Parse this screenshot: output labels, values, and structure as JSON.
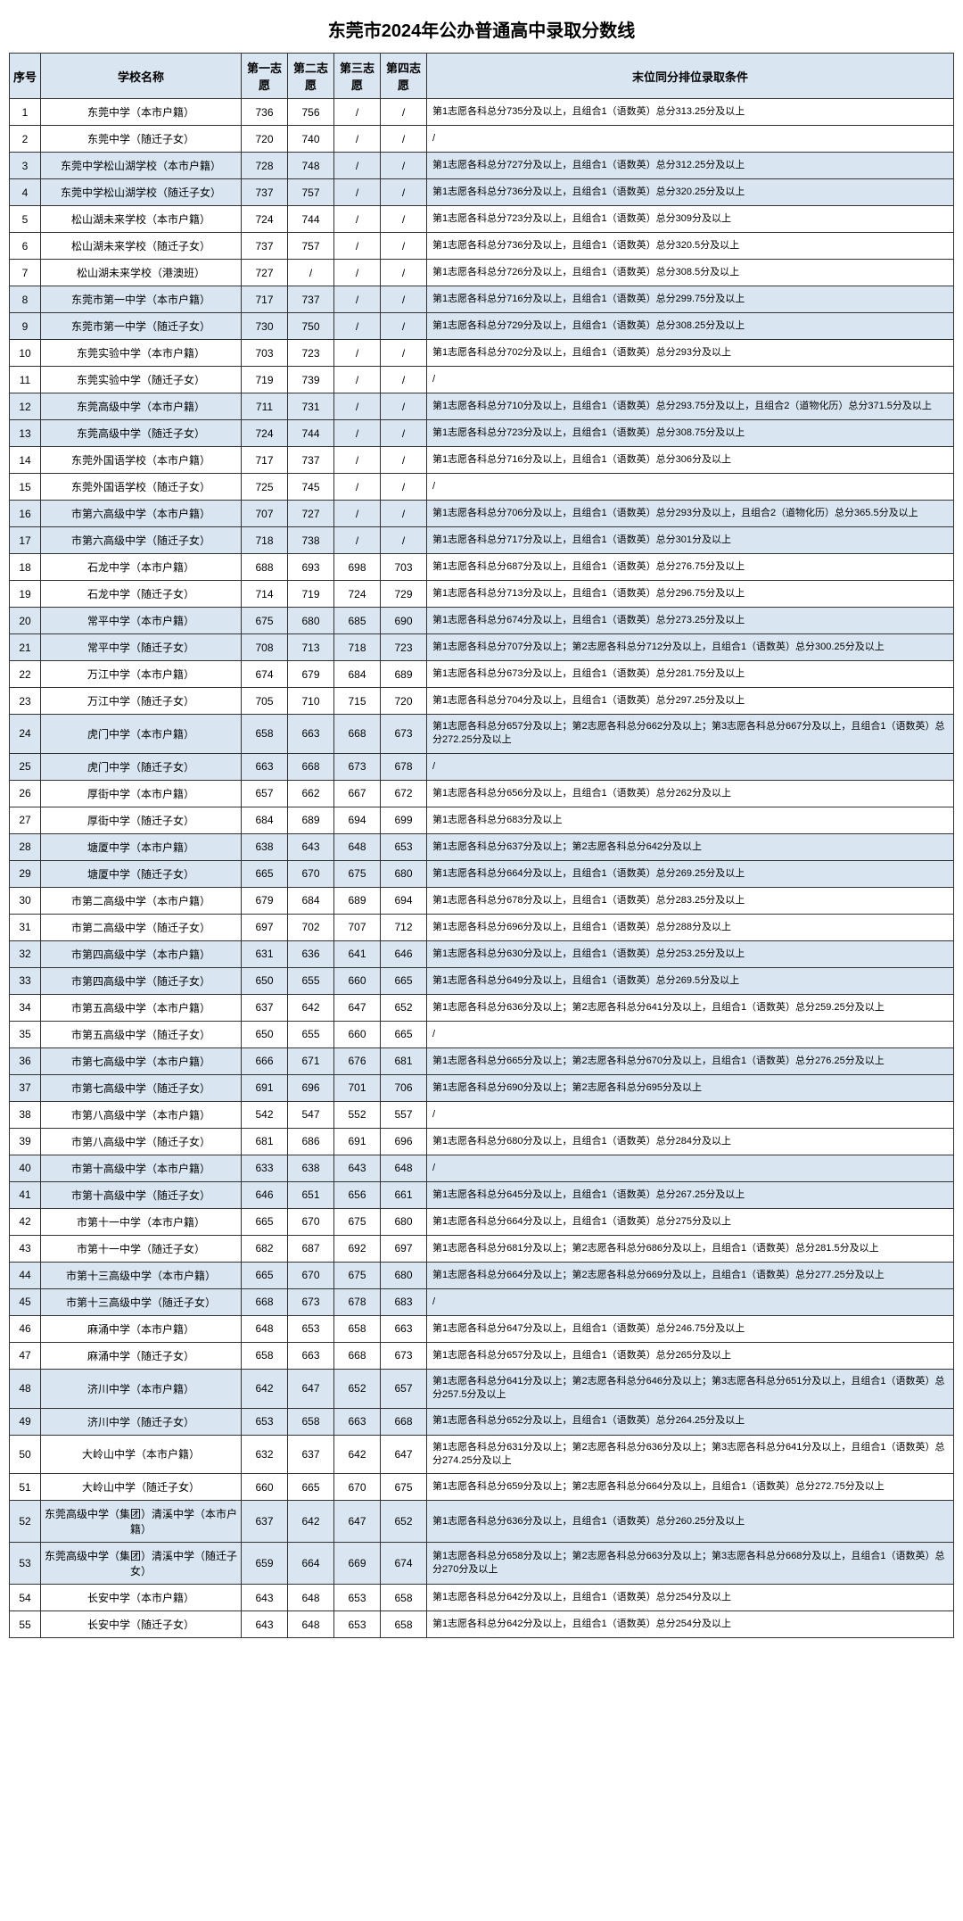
{
  "title": "东莞市2024年公办普通高中录取分数线",
  "headers": {
    "seq": "序号",
    "name": "学校名称",
    "c1": "第一志愿",
    "c2": "第二志愿",
    "c3": "第三志愿",
    "c4": "第四志愿",
    "cond": "末位同分排位录取条件"
  },
  "rows": [
    {
      "seq": "1",
      "name": "东莞中学（本市户籍）",
      "s1": "736",
      "s2": "756",
      "s3": "/",
      "s4": "/",
      "cond": "第1志愿各科总分735分及以上，且组合1（语数英）总分313.25分及以上",
      "hl": false
    },
    {
      "seq": "2",
      "name": "东莞中学（随迁子女）",
      "s1": "720",
      "s2": "740",
      "s3": "/",
      "s4": "/",
      "cond": "/",
      "hl": false
    },
    {
      "seq": "3",
      "name": "东莞中学松山湖学校（本市户籍）",
      "s1": "728",
      "s2": "748",
      "s3": "/",
      "s4": "/",
      "cond": "第1志愿各科总分727分及以上，且组合1（语数英）总分312.25分及以上",
      "hl": true
    },
    {
      "seq": "4",
      "name": "东莞中学松山湖学校（随迁子女）",
      "s1": "737",
      "s2": "757",
      "s3": "/",
      "s4": "/",
      "cond": "第1志愿各科总分736分及以上，且组合1（语数英）总分320.25分及以上",
      "hl": true
    },
    {
      "seq": "5",
      "name": "松山湖未来学校（本市户籍）",
      "s1": "724",
      "s2": "744",
      "s3": "/",
      "s4": "/",
      "cond": "第1志愿各科总分723分及以上，且组合1（语数英）总分309分及以上",
      "hl": false
    },
    {
      "seq": "6",
      "name": "松山湖未来学校（随迁子女）",
      "s1": "737",
      "s2": "757",
      "s3": "/",
      "s4": "/",
      "cond": "第1志愿各科总分736分及以上，且组合1（语数英）总分320.5分及以上",
      "hl": false
    },
    {
      "seq": "7",
      "name": "松山湖未来学校（港澳班）",
      "s1": "727",
      "s2": "/",
      "s3": "/",
      "s4": "/",
      "cond": "第1志愿各科总分726分及以上，且组合1（语数英）总分308.5分及以上",
      "hl": false
    },
    {
      "seq": "8",
      "name": "东莞市第一中学（本市户籍）",
      "s1": "717",
      "s2": "737",
      "s3": "/",
      "s4": "/",
      "cond": "第1志愿各科总分716分及以上，且组合1（语数英）总分299.75分及以上",
      "hl": true
    },
    {
      "seq": "9",
      "name": "东莞市第一中学（随迁子女）",
      "s1": "730",
      "s2": "750",
      "s3": "/",
      "s4": "/",
      "cond": "第1志愿各科总分729分及以上，且组合1（语数英）总分308.25分及以上",
      "hl": true
    },
    {
      "seq": "10",
      "name": "东莞实验中学（本市户籍）",
      "s1": "703",
      "s2": "723",
      "s3": "/",
      "s4": "/",
      "cond": "第1志愿各科总分702分及以上，且组合1（语数英）总分293分及以上",
      "hl": false
    },
    {
      "seq": "11",
      "name": "东莞实验中学（随迁子女）",
      "s1": "719",
      "s2": "739",
      "s3": "/",
      "s4": "/",
      "cond": "/",
      "hl": false
    },
    {
      "seq": "12",
      "name": "东莞高级中学（本市户籍）",
      "s1": "711",
      "s2": "731",
      "s3": "/",
      "s4": "/",
      "cond": "第1志愿各科总分710分及以上，且组合1（语数英）总分293.75分及以上，且组合2（道物化历）总分371.5分及以上",
      "hl": true
    },
    {
      "seq": "13",
      "name": "东莞高级中学（随迁子女）",
      "s1": "724",
      "s2": "744",
      "s3": "/",
      "s4": "/",
      "cond": "第1志愿各科总分723分及以上，且组合1（语数英）总分308.75分及以上",
      "hl": true
    },
    {
      "seq": "14",
      "name": "东莞外国语学校（本市户籍）",
      "s1": "717",
      "s2": "737",
      "s3": "/",
      "s4": "/",
      "cond": "第1志愿各科总分716分及以上，且组合1（语数英）总分306分及以上",
      "hl": false
    },
    {
      "seq": "15",
      "name": "东莞外国语学校（随迁子女）",
      "s1": "725",
      "s2": "745",
      "s3": "/",
      "s4": "/",
      "cond": "/",
      "hl": false
    },
    {
      "seq": "16",
      "name": "市第六高级中学（本市户籍）",
      "s1": "707",
      "s2": "727",
      "s3": "/",
      "s4": "/",
      "cond": "第1志愿各科总分706分及以上，且组合1（语数英）总分293分及以上，且组合2（道物化历）总分365.5分及以上",
      "hl": true
    },
    {
      "seq": "17",
      "name": "市第六高级中学（随迁子女）",
      "s1": "718",
      "s2": "738",
      "s3": "/",
      "s4": "/",
      "cond": "第1志愿各科总分717分及以上，且组合1（语数英）总分301分及以上",
      "hl": true
    },
    {
      "seq": "18",
      "name": "石龙中学（本市户籍）",
      "s1": "688",
      "s2": "693",
      "s3": "698",
      "s4": "703",
      "cond": "第1志愿各科总分687分及以上，且组合1（语数英）总分276.75分及以上",
      "hl": false
    },
    {
      "seq": "19",
      "name": "石龙中学（随迁子女）",
      "s1": "714",
      "s2": "719",
      "s3": "724",
      "s4": "729",
      "cond": "第1志愿各科总分713分及以上，且组合1（语数英）总分296.75分及以上",
      "hl": false
    },
    {
      "seq": "20",
      "name": "常平中学（本市户籍）",
      "s1": "675",
      "s2": "680",
      "s3": "685",
      "s4": "690",
      "cond": "第1志愿各科总分674分及以上，且组合1（语数英）总分273.25分及以上",
      "hl": true
    },
    {
      "seq": "21",
      "name": "常平中学（随迁子女）",
      "s1": "708",
      "s2": "713",
      "s3": "718",
      "s4": "723",
      "cond": "第1志愿各科总分707分及以上；第2志愿各科总分712分及以上，且组合1（语数英）总分300.25分及以上",
      "hl": true
    },
    {
      "seq": "22",
      "name": "万江中学（本市户籍）",
      "s1": "674",
      "s2": "679",
      "s3": "684",
      "s4": "689",
      "cond": "第1志愿各科总分673分及以上，且组合1（语数英）总分281.75分及以上",
      "hl": false
    },
    {
      "seq": "23",
      "name": "万江中学（随迁子女）",
      "s1": "705",
      "s2": "710",
      "s3": "715",
      "s4": "720",
      "cond": "第1志愿各科总分704分及以上，且组合1（语数英）总分297.25分及以上",
      "hl": false
    },
    {
      "seq": "24",
      "name": "虎门中学（本市户籍）",
      "s1": "658",
      "s2": "663",
      "s3": "668",
      "s4": "673",
      "cond": "第1志愿各科总分657分及以上；第2志愿各科总分662分及以上；第3志愿各科总分667分及以上，且组合1（语数英）总分272.25分及以上",
      "hl": true
    },
    {
      "seq": "25",
      "name": "虎门中学（随迁子女）",
      "s1": "663",
      "s2": "668",
      "s3": "673",
      "s4": "678",
      "cond": "/",
      "hl": true
    },
    {
      "seq": "26",
      "name": "厚街中学（本市户籍）",
      "s1": "657",
      "s2": "662",
      "s3": "667",
      "s4": "672",
      "cond": "第1志愿各科总分656分及以上，且组合1（语数英）总分262分及以上",
      "hl": false
    },
    {
      "seq": "27",
      "name": "厚街中学（随迁子女）",
      "s1": "684",
      "s2": "689",
      "s3": "694",
      "s4": "699",
      "cond": "第1志愿各科总分683分及以上",
      "hl": false
    },
    {
      "seq": "28",
      "name": "塘厦中学（本市户籍）",
      "s1": "638",
      "s2": "643",
      "s3": "648",
      "s4": "653",
      "cond": "第1志愿各科总分637分及以上；第2志愿各科总分642分及以上",
      "hl": true
    },
    {
      "seq": "29",
      "name": "塘厦中学（随迁子女）",
      "s1": "665",
      "s2": "670",
      "s3": "675",
      "s4": "680",
      "cond": "第1志愿各科总分664分及以上，且组合1（语数英）总分269.25分及以上",
      "hl": true
    },
    {
      "seq": "30",
      "name": "市第二高级中学（本市户籍）",
      "s1": "679",
      "s2": "684",
      "s3": "689",
      "s4": "694",
      "cond": "第1志愿各科总分678分及以上，且组合1（语数英）总分283.25分及以上",
      "hl": false
    },
    {
      "seq": "31",
      "name": "市第二高级中学（随迁子女）",
      "s1": "697",
      "s2": "702",
      "s3": "707",
      "s4": "712",
      "cond": "第1志愿各科总分696分及以上，且组合1（语数英）总分288分及以上",
      "hl": false
    },
    {
      "seq": "32",
      "name": "市第四高级中学（本市户籍）",
      "s1": "631",
      "s2": "636",
      "s3": "641",
      "s4": "646",
      "cond": "第1志愿各科总分630分及以上，且组合1（语数英）总分253.25分及以上",
      "hl": true
    },
    {
      "seq": "33",
      "name": "市第四高级中学（随迁子女）",
      "s1": "650",
      "s2": "655",
      "s3": "660",
      "s4": "665",
      "cond": "第1志愿各科总分649分及以上，且组合1（语数英）总分269.5分及以上",
      "hl": true
    },
    {
      "seq": "34",
      "name": "市第五高级中学（本市户籍）",
      "s1": "637",
      "s2": "642",
      "s3": "647",
      "s4": "652",
      "cond": "第1志愿各科总分636分及以上；第2志愿各科总分641分及以上，且组合1（语数英）总分259.25分及以上",
      "hl": false
    },
    {
      "seq": "35",
      "name": "市第五高级中学（随迁子女）",
      "s1": "650",
      "s2": "655",
      "s3": "660",
      "s4": "665",
      "cond": "/",
      "hl": false
    },
    {
      "seq": "36",
      "name": "市第七高级中学（本市户籍）",
      "s1": "666",
      "s2": "671",
      "s3": "676",
      "s4": "681",
      "cond": "第1志愿各科总分665分及以上；第2志愿各科总分670分及以上，且组合1（语数英）总分276.25分及以上",
      "hl": true
    },
    {
      "seq": "37",
      "name": "市第七高级中学（随迁子女）",
      "s1": "691",
      "s2": "696",
      "s3": "701",
      "s4": "706",
      "cond": "第1志愿各科总分690分及以上；第2志愿各科总分695分及以上",
      "hl": true
    },
    {
      "seq": "38",
      "name": "市第八高级中学（本市户籍）",
      "s1": "542",
      "s2": "547",
      "s3": "552",
      "s4": "557",
      "cond": "/",
      "hl": false
    },
    {
      "seq": "39",
      "name": "市第八高级中学（随迁子女）",
      "s1": "681",
      "s2": "686",
      "s3": "691",
      "s4": "696",
      "cond": "第1志愿各科总分680分及以上，且组合1（语数英）总分284分及以上",
      "hl": false
    },
    {
      "seq": "40",
      "name": "市第十高级中学（本市户籍）",
      "s1": "633",
      "s2": "638",
      "s3": "643",
      "s4": "648",
      "cond": "/",
      "hl": true
    },
    {
      "seq": "41",
      "name": "市第十高级中学（随迁子女）",
      "s1": "646",
      "s2": "651",
      "s3": "656",
      "s4": "661",
      "cond": "第1志愿各科总分645分及以上，且组合1（语数英）总分267.25分及以上",
      "hl": true
    },
    {
      "seq": "42",
      "name": "市第十一中学（本市户籍）",
      "s1": "665",
      "s2": "670",
      "s3": "675",
      "s4": "680",
      "cond": "第1志愿各科总分664分及以上，且组合1（语数英）总分275分及以上",
      "hl": false
    },
    {
      "seq": "43",
      "name": "市第十一中学（随迁子女）",
      "s1": "682",
      "s2": "687",
      "s3": "692",
      "s4": "697",
      "cond": "第1志愿各科总分681分及以上；第2志愿各科总分686分及以上，且组合1（语数英）总分281.5分及以上",
      "hl": false
    },
    {
      "seq": "44",
      "name": "市第十三高级中学（本市户籍）",
      "s1": "665",
      "s2": "670",
      "s3": "675",
      "s4": "680",
      "cond": "第1志愿各科总分664分及以上；第2志愿各科总分669分及以上，且组合1（语数英）总分277.25分及以上",
      "hl": true
    },
    {
      "seq": "45",
      "name": "市第十三高级中学（随迁子女）",
      "s1": "668",
      "s2": "673",
      "s3": "678",
      "s4": "683",
      "cond": "/",
      "hl": true
    },
    {
      "seq": "46",
      "name": "麻涌中学（本市户籍）",
      "s1": "648",
      "s2": "653",
      "s3": "658",
      "s4": "663",
      "cond": "第1志愿各科总分647分及以上，且组合1（语数英）总分246.75分及以上",
      "hl": false
    },
    {
      "seq": "47",
      "name": "麻涌中学（随迁子女）",
      "s1": "658",
      "s2": "663",
      "s3": "668",
      "s4": "673",
      "cond": "第1志愿各科总分657分及以上，且组合1（语数英）总分265分及以上",
      "hl": false
    },
    {
      "seq": "48",
      "name": "济川中学（本市户籍）",
      "s1": "642",
      "s2": "647",
      "s3": "652",
      "s4": "657",
      "cond": "第1志愿各科总分641分及以上；第2志愿各科总分646分及以上；第3志愿各科总分651分及以上，且组合1（语数英）总分257.5分及以上",
      "hl": true
    },
    {
      "seq": "49",
      "name": "济川中学（随迁子女）",
      "s1": "653",
      "s2": "658",
      "s3": "663",
      "s4": "668",
      "cond": "第1志愿各科总分652分及以上，且组合1（语数英）总分264.25分及以上",
      "hl": true
    },
    {
      "seq": "50",
      "name": "大岭山中学（本市户籍）",
      "s1": "632",
      "s2": "637",
      "s3": "642",
      "s4": "647",
      "cond": "第1志愿各科总分631分及以上；第2志愿各科总分636分及以上；第3志愿各科总分641分及以上，且组合1（语数英）总分274.25分及以上",
      "hl": false
    },
    {
      "seq": "51",
      "name": "大岭山中学（随迁子女）",
      "s1": "660",
      "s2": "665",
      "s3": "670",
      "s4": "675",
      "cond": "第1志愿各科总分659分及以上；第2志愿各科总分664分及以上，且组合1（语数英）总分272.75分及以上",
      "hl": false
    },
    {
      "seq": "52",
      "name": "东莞高级中学（集团）清溪中学（本市户籍）",
      "s1": "637",
      "s2": "642",
      "s3": "647",
      "s4": "652",
      "cond": "第1志愿各科总分636分及以上，且组合1（语数英）总分260.25分及以上",
      "hl": true
    },
    {
      "seq": "53",
      "name": "东莞高级中学（集团）清溪中学（随迁子女）",
      "s1": "659",
      "s2": "664",
      "s3": "669",
      "s4": "674",
      "cond": "第1志愿各科总分658分及以上；第2志愿各科总分663分及以上；第3志愿各科总分668分及以上，且组合1（语数英）总分270分及以上",
      "hl": true
    },
    {
      "seq": "54",
      "name": "长安中学（本市户籍）",
      "s1": "643",
      "s2": "648",
      "s3": "653",
      "s4": "658",
      "cond": "第1志愿各科总分642分及以上，且组合1（语数英）总分254分及以上",
      "hl": false
    },
    {
      "seq": "55",
      "name": "长安中学（随迁子女）",
      "s1": "643",
      "s2": "648",
      "s3": "653",
      "s4": "658",
      "cond": "第1志愿各科总分642分及以上，且组合1（语数英）总分254分及以上",
      "hl": false
    }
  ]
}
